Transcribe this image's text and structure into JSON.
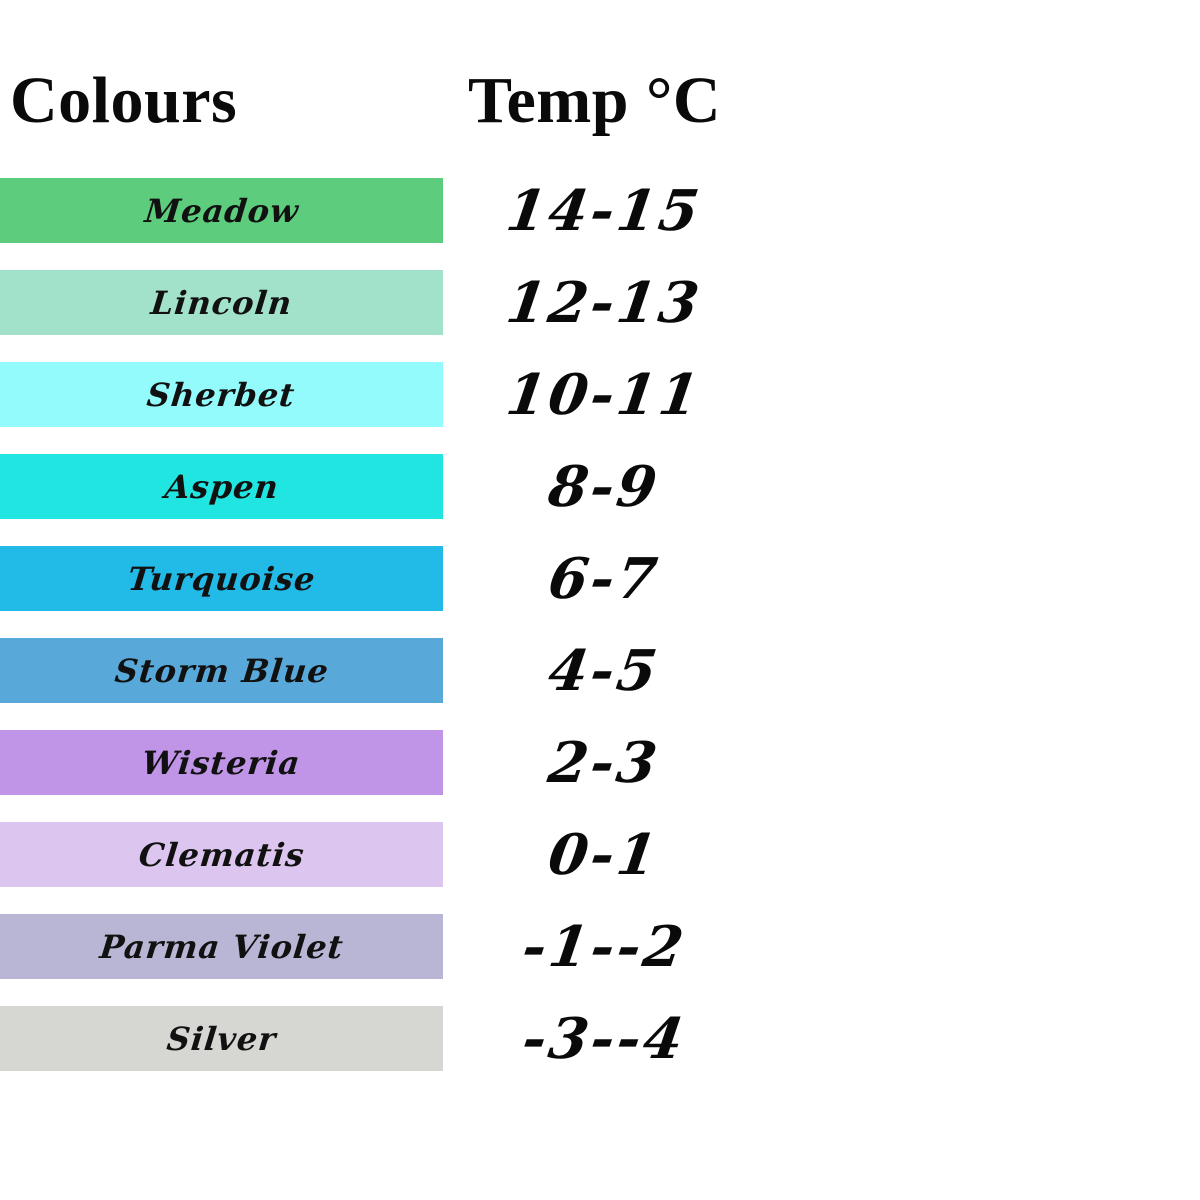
{
  "header": {
    "colours_label": "Colours",
    "temp_label": "Temp °C"
  },
  "colors": {
    "background": "#ffffff",
    "text": "#0a0a0a"
  },
  "chart_data": {
    "type": "table",
    "columns": [
      "Colours",
      "Temp °C"
    ],
    "rows": [
      {
        "name": "Meadow",
        "temp": "14-15",
        "color": "#5dcd7d"
      },
      {
        "name": "Lincoln",
        "temp": "12-13",
        "color": "#a2e2cb"
      },
      {
        "name": "Sherbet",
        "temp": "10-11",
        "color": "#93fbfb"
      },
      {
        "name": "Aspen",
        "temp": "8-9",
        "color": "#21e5e0"
      },
      {
        "name": "Turquoise",
        "temp": "6-7",
        "color": "#22bae7"
      },
      {
        "name": "Storm Blue",
        "temp": "4-5",
        "color": "#58a9d9"
      },
      {
        "name": "Wisteria",
        "temp": "2-3",
        "color": "#c094e6"
      },
      {
        "name": "Clematis",
        "temp": "0-1",
        "color": "#dcc5ef"
      },
      {
        "name": "Parma Violet",
        "temp": "-1--2",
        "color": "#b9b5d4"
      },
      {
        "name": "Silver",
        "temp": "-3--4",
        "color": "#d6d6d3"
      }
    ]
  }
}
